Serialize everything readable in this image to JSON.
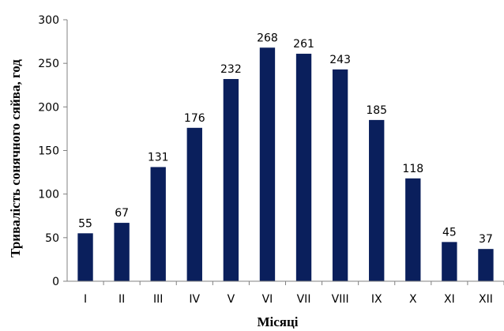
{
  "chart_data": {
    "type": "bar",
    "categories": [
      "I",
      "II",
      "III",
      "IV",
      "V",
      "VI",
      "VII",
      "VIII",
      "IX",
      "X",
      "XI",
      "XII"
    ],
    "values": [
      55,
      67,
      131,
      176,
      232,
      268,
      261,
      243,
      185,
      118,
      45,
      37
    ],
    "xlabel": "Місяці",
    "ylabel": "Тривалість сонячного сяйва, год",
    "ylim": [
      0,
      300
    ],
    "yticks": [
      0,
      50,
      100,
      150,
      200,
      250,
      300
    ],
    "ytick_labels": [
      "0",
      "50",
      "100",
      "150",
      "200",
      "250",
      "300"
    ],
    "grid": false,
    "legend": "none",
    "bar_color": "#0a1f5c",
    "axis_color": "#808080"
  }
}
